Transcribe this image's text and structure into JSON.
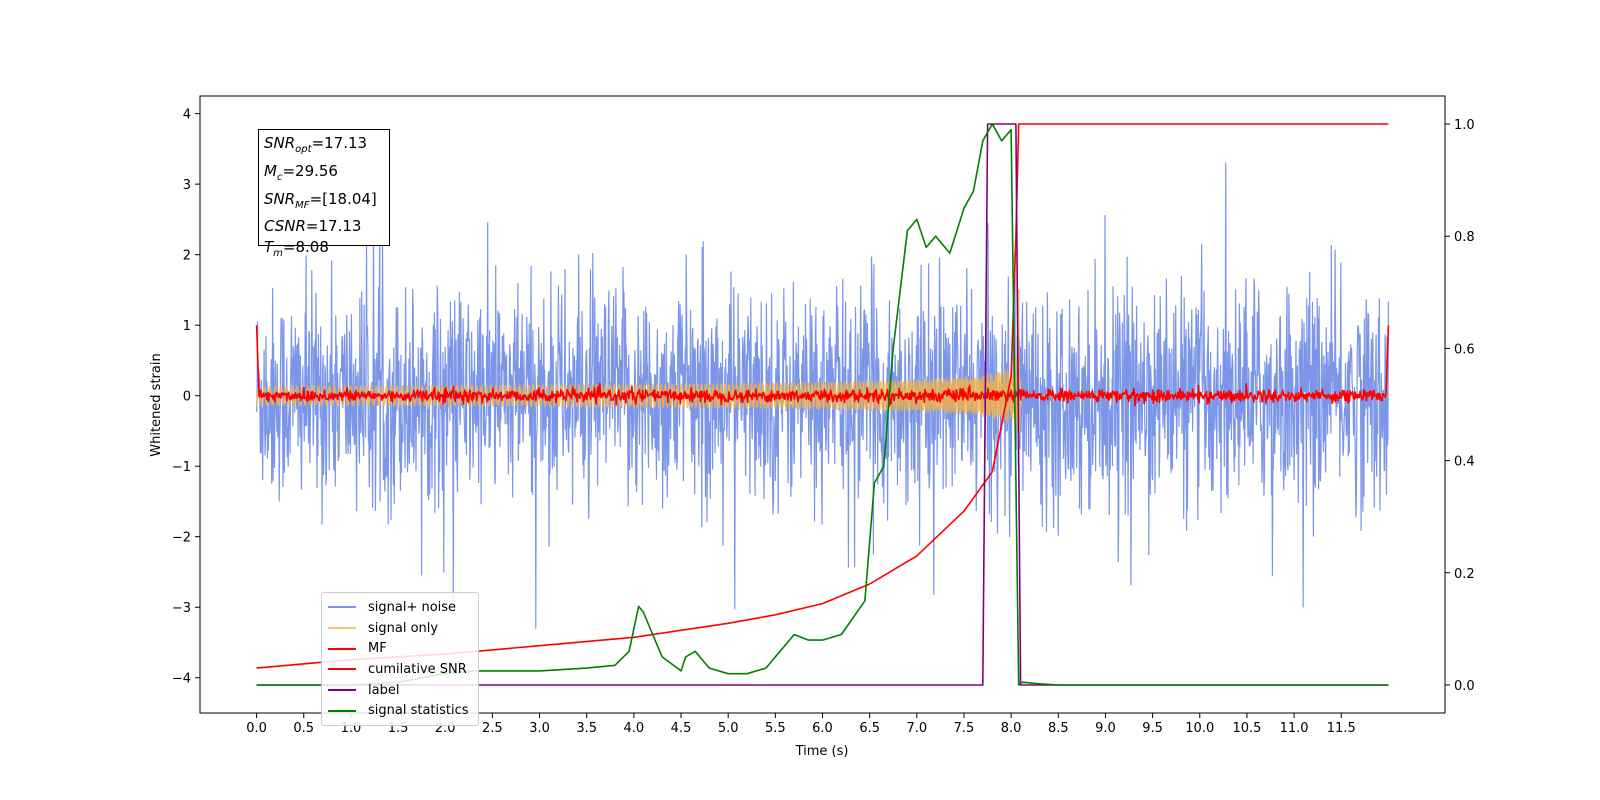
{
  "chart_data": {
    "type": "line",
    "xlabel": "Time (s)",
    "ylabel": "Whitened strain",
    "xlim": [
      -0.6,
      12.6
    ],
    "ylim": [
      -4.5,
      4.25
    ],
    "y2lim": [
      -0.05,
      1.05
    ],
    "x_ticks": [
      "0.0",
      "0.5",
      "1.0",
      "1.5",
      "2.0",
      "2.5",
      "3.0",
      "3.5",
      "4.0",
      "4.5",
      "5.0",
      "5.5",
      "6.0",
      "6.5",
      "7.0",
      "7.5",
      "8.0",
      "8.5",
      "9.0",
      "9.5",
      "10.0",
      "10.5",
      "11.0",
      "11.5"
    ],
    "y_ticks": [
      "4",
      "3",
      "2",
      "1",
      "0",
      "−1",
      "−2",
      "−3",
      "−4"
    ],
    "y2_ticks": [
      "1.0",
      "0.8",
      "0.6",
      "0.4",
      "0.2",
      "0.0"
    ],
    "annotation": [
      {
        "sym": "SNR",
        "sub": "opt",
        "text": "=17.13"
      },
      {
        "sym": "M",
        "sub": "c",
        "text": "=29.56"
      },
      {
        "sym": "SNR",
        "sub": "MF",
        "text": "=[18.04]"
      },
      {
        "sym": "CSNR",
        "sub": "",
        "text": "=17.13"
      },
      {
        "sym": "T",
        "sub": "m",
        "text": "=8.08"
      }
    ],
    "legend_position": "lower-left",
    "series": [
      {
        "name": "signal+ noise",
        "color": "#4f72e0",
        "axis": "left",
        "kind": "noise",
        "duration": 12.0,
        "std": 0.75
      },
      {
        "name": "signal only",
        "color": "#f5b342",
        "axis": "left",
        "kind": "chirp",
        "merger_time": 8.08,
        "peak": 1.5
      },
      {
        "name": "MF",
        "color": "#ff0000",
        "axis": "left",
        "kind": "mf",
        "level": 0.0
      },
      {
        "name": "cumilative SNR",
        "color": "#ff0000",
        "axis": "right",
        "x": [
          0.0,
          1.0,
          2.0,
          3.0,
          4.0,
          5.0,
          5.5,
          6.0,
          6.5,
          7.0,
          7.5,
          7.8,
          8.0,
          8.05,
          8.08,
          12.0
        ],
        "y": [
          0.03,
          0.045,
          0.055,
          0.07,
          0.085,
          0.11,
          0.125,
          0.145,
          0.18,
          0.23,
          0.31,
          0.38,
          0.55,
          0.8,
          1.0,
          1.0
        ]
      },
      {
        "name": "label",
        "color": "#800080",
        "axis": "right",
        "x": [
          0.0,
          7.7,
          7.75,
          8.05,
          8.1,
          12.0
        ],
        "y": [
          0.0,
          0.0,
          1.0,
          1.0,
          0.0,
          0.0
        ]
      },
      {
        "name": "signal statistics",
        "color": "#008000",
        "axis": "right",
        "x": [
          0.0,
          1.0,
          1.5,
          2.0,
          2.3,
          2.5,
          3.0,
          3.5,
          3.8,
          3.95,
          4.05,
          4.1,
          4.2,
          4.3,
          4.5,
          4.55,
          4.65,
          4.8,
          5.0,
          5.2,
          5.4,
          5.5,
          5.6,
          5.7,
          5.85,
          6.0,
          6.2,
          6.45,
          6.55,
          6.65,
          6.75,
          6.9,
          7.0,
          7.1,
          7.2,
          7.35,
          7.5,
          7.6,
          7.7,
          7.8,
          7.9,
          8.0,
          8.08,
          8.12,
          8.3,
          8.5,
          12.0
        ],
        "y": [
          0.0,
          0.0,
          0.005,
          0.02,
          0.025,
          0.025,
          0.025,
          0.03,
          0.035,
          0.06,
          0.14,
          0.13,
          0.09,
          0.05,
          0.025,
          0.05,
          0.06,
          0.03,
          0.02,
          0.02,
          0.03,
          0.05,
          0.07,
          0.09,
          0.08,
          0.08,
          0.09,
          0.15,
          0.36,
          0.39,
          0.6,
          0.81,
          0.83,
          0.78,
          0.8,
          0.77,
          0.85,
          0.88,
          0.97,
          1.0,
          0.97,
          0.99,
          0.0,
          0.005,
          0.002,
          0.0,
          0.0
        ]
      }
    ]
  }
}
